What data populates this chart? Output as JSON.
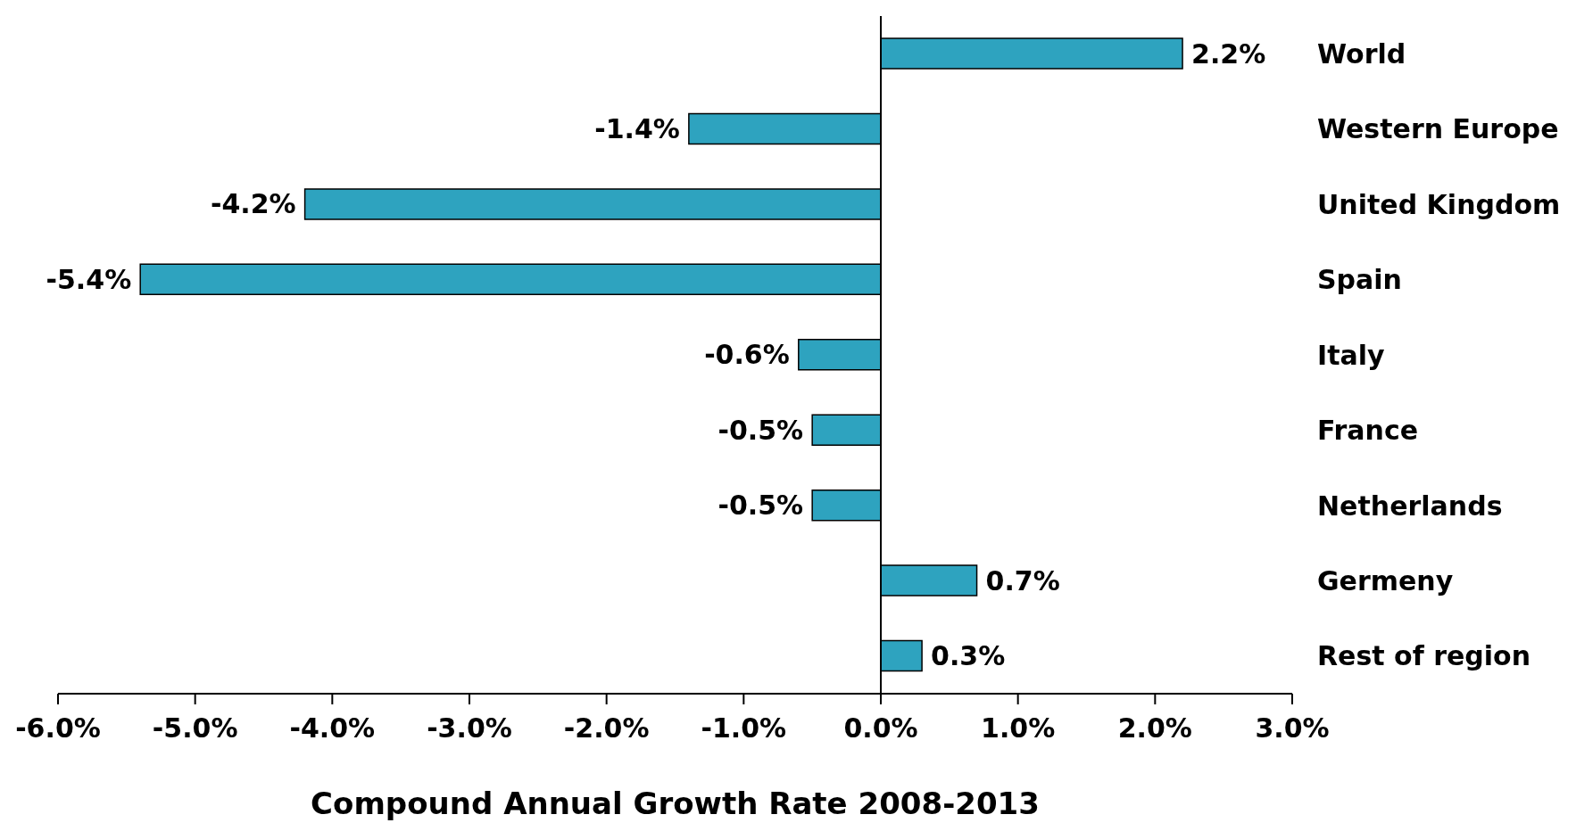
{
  "chart_data": {
    "type": "bar",
    "orientation": "horizontal",
    "xlabel": "Compound Annual Growth Rate 2008-2013",
    "categories": [
      "World",
      "Western Europe",
      "United Kingdom",
      "Spain",
      "Italy",
      "France",
      "Netherlands",
      "Germeny",
      "Rest of region"
    ],
    "values": [
      2.2,
      -1.4,
      -4.2,
      -5.4,
      -0.6,
      -0.5,
      -0.5,
      0.7,
      0.3
    ],
    "value_labels": [
      "2.2%",
      "-1.4%",
      "-4.2%",
      "-5.4%",
      "-0.6%",
      "-0.5%",
      "-0.5%",
      "0.7%",
      "0.3%"
    ],
    "color": "#2ea3bf",
    "xlim": [
      -6,
      3
    ],
    "xticks": [
      {
        "value": -6,
        "label": "-6.0%"
      },
      {
        "value": -5,
        "label": "-5.0%"
      },
      {
        "value": -4,
        "label": "-4.0%"
      },
      {
        "value": -3,
        "label": "-3.0%"
      },
      {
        "value": -2,
        "label": "-2.0%"
      },
      {
        "value": -1,
        "label": "-1.0%"
      },
      {
        "value": 0,
        "label": "0.0%"
      },
      {
        "value": 1,
        "label": "1.0%"
      },
      {
        "value": 2,
        "label": "2.0%"
      },
      {
        "value": 3,
        "label": "3.0%"
      }
    ],
    "legend": false
  }
}
